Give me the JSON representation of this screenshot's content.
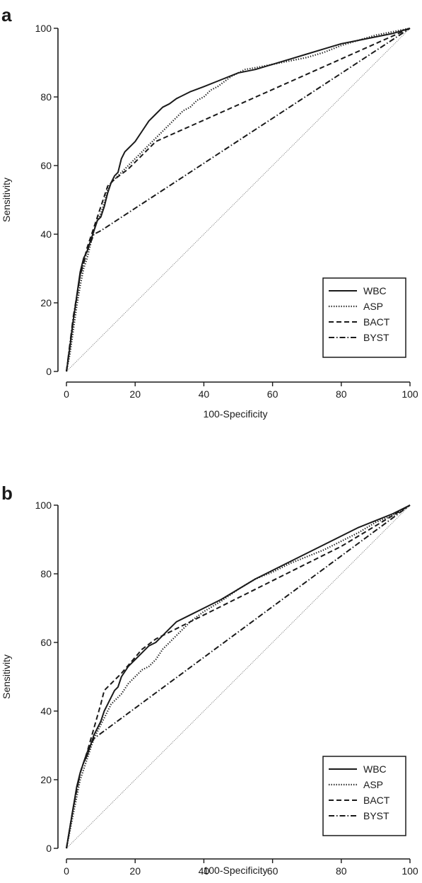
{
  "chart_data": [
    {
      "type": "line",
      "panel_label": "a",
      "xlabel": "100-Specificity",
      "ylabel": "Sensitivity",
      "xlim": [
        0,
        100
      ],
      "ylim": [
        0,
        100
      ],
      "xticks": [
        0,
        20,
        40,
        60,
        80,
        100
      ],
      "yticks": [
        0,
        20,
        40,
        60,
        80,
        100
      ],
      "grid": false,
      "legend_position": "bottom-right",
      "reference_line": {
        "x": [
          0,
          100
        ],
        "y": [
          0,
          100
        ]
      },
      "series": [
        {
          "name": "WBC",
          "style": "solid",
          "x": [
            0,
            1,
            2,
            3,
            4,
            5,
            6,
            7,
            8,
            9,
            10,
            11,
            12,
            13,
            14,
            15,
            16,
            17,
            18,
            19,
            20,
            22,
            24,
            26,
            28,
            30,
            32,
            36,
            40,
            45,
            50,
            55,
            60,
            65,
            70,
            75,
            80,
            85,
            90,
            95,
            100
          ],
          "y": [
            0,
            7,
            15,
            22,
            29,
            33,
            35,
            38,
            41,
            44,
            45,
            48,
            52,
            55,
            57,
            58,
            62,
            64,
            65,
            66,
            67,
            70,
            73,
            75,
            77,
            78,
            79.5,
            81.5,
            83,
            85,
            87,
            88,
            89.5,
            91,
            92.5,
            94,
            95.5,
            96.5,
            97.5,
            98.5,
            100
          ]
        },
        {
          "name": "ASP",
          "style": "dotted",
          "x": [
            0,
            1,
            2,
            3,
            4,
            5,
            6,
            7,
            8,
            9,
            10,
            11,
            12,
            13,
            14,
            15,
            16,
            18,
            20,
            22,
            24,
            26,
            28,
            30,
            32,
            34,
            36,
            38,
            40,
            42,
            44,
            46,
            48,
            50,
            52,
            55,
            60,
            65,
            70,
            75,
            80,
            85,
            90,
            95,
            100
          ],
          "y": [
            0,
            5,
            12,
            19,
            25,
            30,
            33,
            37,
            41,
            44,
            46,
            49,
            53,
            55,
            56,
            57,
            58,
            60,
            62,
            64,
            66,
            68,
            70,
            72,
            74,
            76,
            77,
            79,
            80,
            82,
            83,
            84.5,
            86,
            87,
            88,
            88.5,
            89.5,
            90.5,
            91.5,
            93,
            95,
            96.5,
            98,
            99,
            100
          ]
        },
        {
          "name": "BACT",
          "style": "dashed",
          "x": [
            0,
            2,
            4,
            6,
            8,
            10,
            12,
            14,
            18,
            22,
            26,
            100
          ],
          "y": [
            0,
            15,
            28,
            36,
            42,
            48,
            54,
            56,
            59,
            63,
            67,
            100
          ]
        },
        {
          "name": "BYST",
          "style": "dashdot",
          "x": [
            0,
            2,
            4,
            6,
            8,
            10,
            100
          ],
          "y": [
            0,
            16,
            28,
            35,
            40,
            41,
            100
          ]
        }
      ]
    },
    {
      "type": "line",
      "panel_label": "b",
      "xlabel": "100-Specificity",
      "ylabel": "Sensitivity",
      "xlim": [
        0,
        100
      ],
      "ylim": [
        0,
        100
      ],
      "xticks": [
        0,
        20,
        40,
        60,
        80,
        100
      ],
      "yticks": [
        0,
        20,
        40,
        60,
        80,
        100
      ],
      "grid": false,
      "legend_position": "bottom-right",
      "reference_line": {
        "x": [
          0,
          100
        ],
        "y": [
          0,
          100
        ]
      },
      "series": [
        {
          "name": "WBC",
          "style": "solid",
          "x": [
            0,
            1,
            2,
            3,
            4,
            5,
            6,
            7,
            8,
            9,
            10,
            11,
            12,
            13,
            14,
            15,
            16,
            18,
            20,
            22,
            24,
            26,
            28,
            30,
            32,
            36,
            40,
            45,
            50,
            55,
            60,
            65,
            70,
            75,
            80,
            85,
            90,
            95,
            100
          ],
          "y": [
            0,
            6,
            12,
            18,
            22,
            25,
            27,
            30,
            33,
            35,
            37,
            40,
            42,
            44,
            46,
            47,
            50,
            53,
            55,
            57,
            59,
            60,
            62,
            64,
            66,
            68,
            70,
            72.5,
            75.5,
            78.5,
            81,
            83.5,
            86,
            88.5,
            91,
            93.5,
            95.5,
            97.5,
            100
          ]
        },
        {
          "name": "ASP",
          "style": "dotted",
          "x": [
            0,
            1,
            2,
            3,
            4,
            5,
            6,
            7,
            8,
            9,
            10,
            11,
            12,
            13,
            14,
            15,
            16,
            18,
            20,
            22,
            24,
            26,
            28,
            30,
            32,
            36,
            40,
            45,
            50,
            55,
            60,
            65,
            70,
            75,
            80,
            85,
            90,
            95,
            100
          ],
          "y": [
            0,
            5,
            10,
            15,
            20,
            23,
            26,
            29,
            32,
            34,
            36,
            38,
            40,
            42,
            43,
            44,
            45,
            48,
            50,
            52,
            53,
            55,
            58,
            60,
            62,
            66,
            69,
            72,
            75.5,
            78.5,
            80.5,
            83,
            85,
            87,
            89.5,
            92,
            95,
            97,
            100
          ]
        },
        {
          "name": "BACT",
          "style": "dashed",
          "x": [
            0,
            2,
            4,
            6,
            8,
            10,
            11,
            16,
            22,
            26,
            30,
            40,
            50,
            60,
            70,
            80,
            90,
            100
          ],
          "y": [
            0,
            12,
            22,
            28,
            35,
            42,
            46,
            51,
            58,
            61,
            63,
            68,
            73,
            78,
            83,
            88,
            94,
            100
          ]
        },
        {
          "name": "BYST",
          "style": "dashdot",
          "x": [
            0,
            2,
            4,
            6,
            8,
            100
          ],
          "y": [
            0,
            12,
            22,
            28,
            32,
            100
          ]
        }
      ]
    }
  ]
}
